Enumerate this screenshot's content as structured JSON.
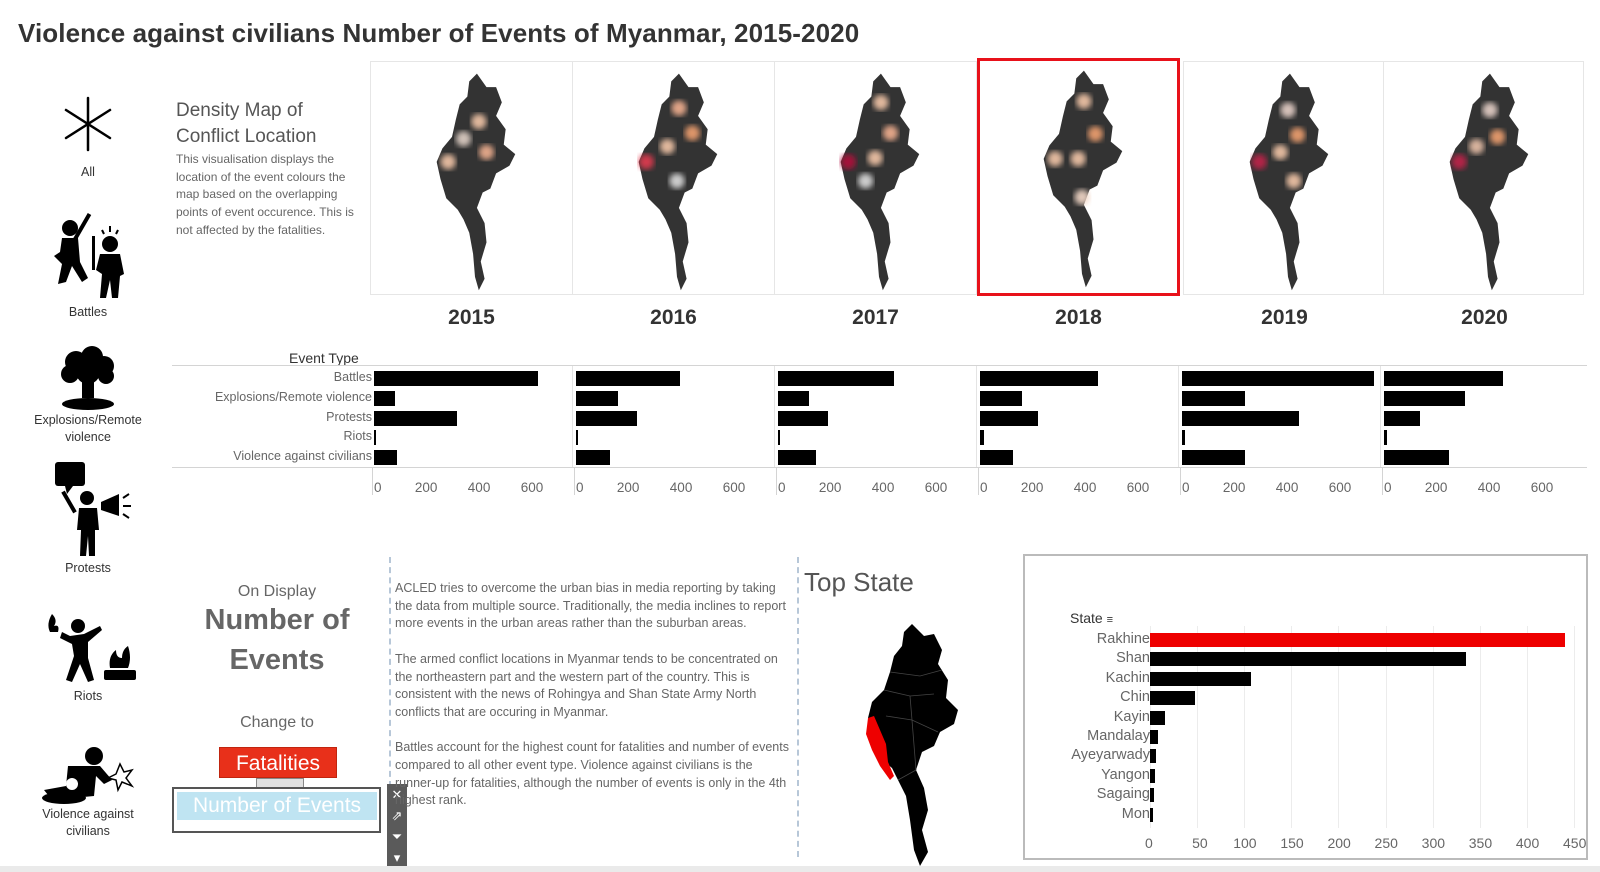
{
  "title": "Violence against civilians Number of Events of Myanmar, 2015-2020",
  "event_icons": [
    {
      "label": "All",
      "icon": "asterisk-icon"
    },
    {
      "label": "Battles",
      "icon": "battles-icon"
    },
    {
      "label": "Explosions/Remote violence",
      "icon": "explosion-icon"
    },
    {
      "label": "Protests",
      "icon": "protests-icon"
    },
    {
      "label": "Riots",
      "icon": "riots-icon"
    },
    {
      "label": "Violence against civilians",
      "icon": "violence-against-civilians-icon"
    }
  ],
  "density": {
    "title_line1": "Density Map of",
    "title_line2": "Conflict Location",
    "description": "This visualisation displays the location of the event colours the map based on the overlapping points of event occurence. This is not affected by the fatalities."
  },
  "years": [
    "2015",
    "2016",
    "2017",
    "2018",
    "2019",
    "2020"
  ],
  "selected_year": "2018",
  "chart_data": [
    {
      "type": "bar",
      "orientation": "horizontal",
      "row_header": "Event Type",
      "categories": [
        "Battles",
        "Explosions/Remote violence",
        "Protests",
        "Riots",
        "Violence against civilians"
      ],
      "columns": [
        "2015",
        "2016",
        "2017",
        "2018",
        "2019",
        "2020"
      ],
      "series": [
        {
          "name": "2015",
          "values": [
            620,
            80,
            315,
            5,
            88
          ]
        },
        {
          "name": "2016",
          "values": [
            395,
            158,
            232,
            2,
            130
          ]
        },
        {
          "name": "2017",
          "values": [
            440,
            118,
            190,
            8,
            145
          ]
        },
        {
          "name": "2018",
          "values": [
            445,
            160,
            220,
            15,
            123
          ]
        },
        {
          "name": "2019",
          "values": [
            725,
            240,
            442,
            12,
            237
          ]
        },
        {
          "name": "2020",
          "values": [
            450,
            305,
            135,
            10,
            247
          ]
        }
      ],
      "ticks": [
        "0",
        "200",
        "400",
        "600"
      ],
      "xlim": [
        0,
        740
      ]
    },
    {
      "type": "bar",
      "orientation": "horizontal",
      "title": "Top State",
      "row_header": "State",
      "categories": [
        "Rakhine",
        "Shan",
        "Kachin",
        "Chin",
        "Kayin",
        "Mandalay",
        "Ayeyarwady",
        "Yangon",
        "Sagaing",
        "Mon"
      ],
      "values": [
        440,
        335,
        107,
        48,
        16,
        9,
        6,
        5,
        4,
        3
      ],
      "highlight": "Rakhine",
      "highlight_color": "#ee0000",
      "ticks": [
        "0",
        "50",
        "100",
        "150",
        "200",
        "250",
        "300",
        "350",
        "400",
        "450"
      ],
      "xlim": [
        0,
        450
      ],
      "grid": true
    }
  ],
  "controls": {
    "on_display": "On Display",
    "measure_line1": "Number of",
    "measure_line2": "Events",
    "change_to": "Change to",
    "fatalities_button": "Fatalities",
    "number_of_events_button": "Number of Events",
    "accent_color": "#e8301a",
    "selected_bg": "#bfe4f2"
  },
  "acled_text": [
    "ACLED tries to overcome the urban bias in media reporting by taking the data from multiple source. Traditionally, the media inclines to report more events in the urban areas rather than the suburban areas.",
    "The armed conflict locations in Myanmar tends to be concentrated on the northeastern part and the western part of the country. This is consistent with the news of Rohingya and Shan State Army North conflicts that are occuring in Myanmar.",
    "Battles account for the highest count for fatalities and number of events compared to all other event type. Violence against civilians is the runner-up for fatalities, although the number of events is only in the 4th highest rank."
  ],
  "top_state_map_highlight_color": "#ee0000"
}
